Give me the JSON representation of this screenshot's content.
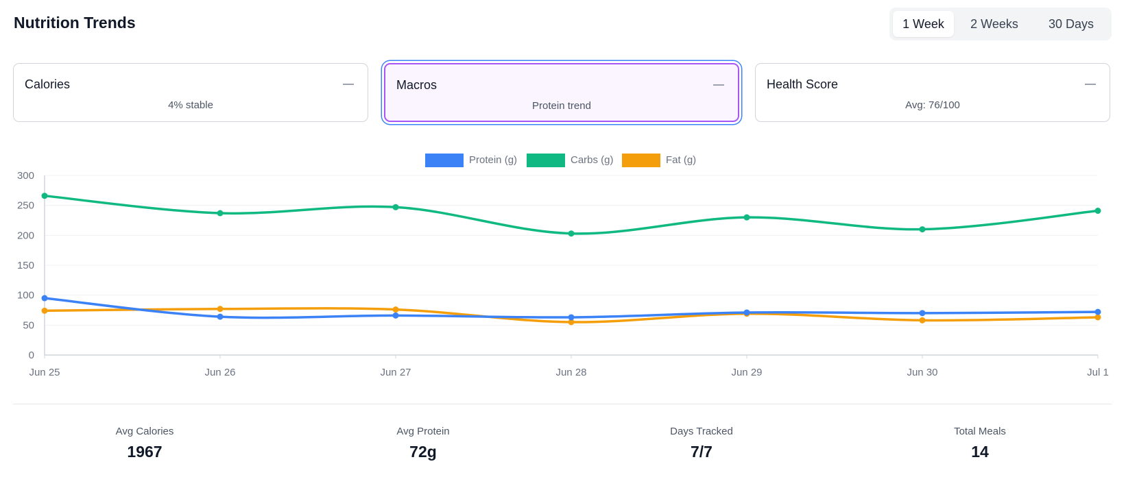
{
  "header": {
    "title": "Nutrition Trends"
  },
  "range_options": [
    {
      "label": "1 Week",
      "active": true
    },
    {
      "label": "2 Weeks",
      "active": false
    },
    {
      "label": "30 Days",
      "active": false
    }
  ],
  "cards": [
    {
      "label": "Calories",
      "subtitle": "4% stable",
      "selected": false
    },
    {
      "label": "Macros",
      "subtitle": "Protein trend",
      "selected": true
    },
    {
      "label": "Health Score",
      "subtitle": "Avg: 76/100",
      "selected": false
    }
  ],
  "chart_data": {
    "type": "line",
    "x": [
      "Jun 25",
      "Jun 26",
      "Jun 27",
      "Jun 28",
      "Jun 29",
      "Jun 30",
      "Jul 1"
    ],
    "series": [
      {
        "name": "Protein (g)",
        "color": "#3b82f6",
        "values": [
          95,
          64,
          66,
          63,
          71,
          70,
          72
        ]
      },
      {
        "name": "Carbs (g)",
        "color": "#10b981",
        "values": [
          266,
          237,
          247,
          203,
          230,
          210,
          241
        ]
      },
      {
        "name": "Fat (g)",
        "color": "#f59e0b",
        "values": [
          74,
          77,
          76,
          55,
          69,
          58,
          63
        ]
      }
    ],
    "ylim": [
      0,
      300
    ],
    "yticks": [
      0,
      50,
      100,
      150,
      200,
      250,
      300
    ],
    "grid": true,
    "legend": "top-center",
    "curve": "smooth"
  },
  "stats": [
    {
      "label": "Avg Calories",
      "value": "1967"
    },
    {
      "label": "Avg Protein",
      "value": "72g"
    },
    {
      "label": "Days Tracked",
      "value": "7/7"
    },
    {
      "label": "Total Meals",
      "value": "14"
    }
  ]
}
